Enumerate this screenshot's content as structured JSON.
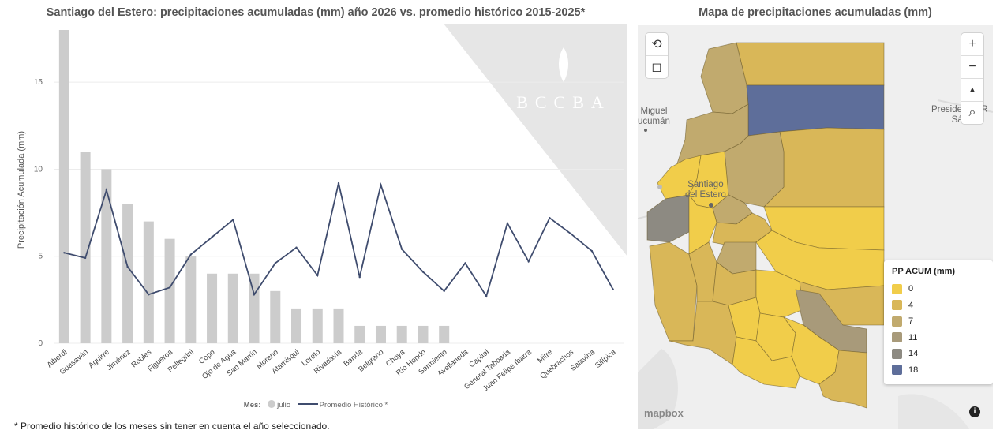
{
  "chart_title": "Santiago del Estero: precipitaciones acumuladas (mm) año 2026 vs. promedio histórico 2015-2025*",
  "watermark": "BCCBA",
  "footnote": "* Promedio histórico de los meses sin tener en cuenta el año seleccionado.",
  "legend": {
    "label": "Mes:",
    "bar_series": "julio",
    "line_series": "Promedio Histórico *"
  },
  "chart_data": {
    "type": "bar",
    "title": "Santiago del Estero: precipitaciones acumuladas (mm) año 2026 vs. promedio histórico 2015-2025*",
    "xlabel": "",
    "ylabel": "Precipitación Acumulada (mm)",
    "ylim": [
      0,
      18
    ],
    "yticks": [
      0,
      5,
      10,
      15
    ],
    "grid": true,
    "legend_position": "bottom",
    "categories": [
      "Alberdi",
      "Guasayán",
      "Aguirre",
      "Jiménez",
      "Robles",
      "Figueroa",
      "Pellegrini",
      "Copo",
      "Ojo de Agua",
      "San Martín",
      "Moreno",
      "Atamisqui",
      "Loreto",
      "Rivadavia",
      "Banda",
      "Belgrano",
      "Choya",
      "Río Hondo",
      "Sarmiento",
      "Avellaneda",
      "Capital",
      "General Taboada",
      "Juan Felipe Ibarra",
      "Mitre",
      "Quebrachos",
      "Salavina",
      "Silípica"
    ],
    "series": [
      {
        "name": "julio",
        "type": "bar",
        "color": "#cccccc",
        "values": [
          18,
          11,
          10,
          8,
          7,
          6,
          5,
          4,
          4,
          4,
          3,
          2,
          2,
          2,
          1,
          1,
          1,
          1,
          1,
          0,
          0,
          0,
          0,
          0,
          0,
          0,
          0
        ]
      },
      {
        "name": "Promedio Histórico *",
        "type": "line",
        "color": "#3f4c6e",
        "values": [
          5.2,
          4.9,
          8.8,
          4.4,
          2.8,
          3.2,
          5.1,
          6.1,
          7.1,
          2.8,
          4.6,
          5.5,
          3.9,
          9.2,
          3.8,
          9.1,
          5.4,
          4.1,
          3.0,
          4.6,
          2.7,
          6.9,
          4.7,
          7.2,
          6.3,
          5.3,
          3.1
        ]
      }
    ]
  },
  "map": {
    "title": "Mapa de precipitaciones acumuladas (mm)",
    "legend_title": "PP ACUM (mm)",
    "legend_items": [
      {
        "label": "0",
        "color": "#f1cd4a"
      },
      {
        "label": "4",
        "color": "#d9b758"
      },
      {
        "label": "7",
        "color": "#c1aa6e"
      },
      {
        "label": "11",
        "color": "#a89a7a"
      },
      {
        "label": "14",
        "color": "#8d8a82"
      },
      {
        "label": "18",
        "color": "#5e6e9a"
      }
    ],
    "places": {
      "city": "Santiago\ndel Estero",
      "miguel": "Miguel\nucumán",
      "presidencia": "Presidencia R\nSáe"
    },
    "attribution": "mapbox",
    "controls": {
      "zoom_in": "+",
      "zoom_out": "−"
    }
  }
}
